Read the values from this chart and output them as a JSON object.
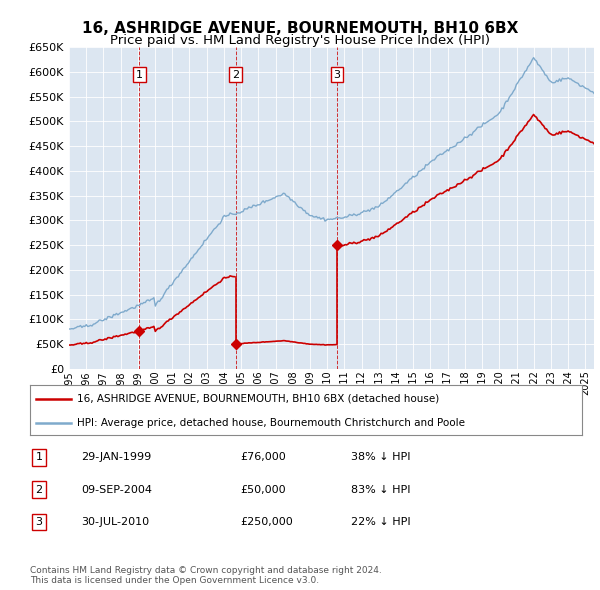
{
  "title": "16, ASHRIDGE AVENUE, BOURNEMOUTH, BH10 6BX",
  "subtitle": "Price paid vs. HM Land Registry's House Price Index (HPI)",
  "title_fontsize": 11,
  "subtitle_fontsize": 9.5,
  "background_color": "#ffffff",
  "plot_bg_color": "#dce6f1",
  "grid_color": "#ffffff",
  "ylim": [
    0,
    650000
  ],
  "yticks": [
    0,
    50000,
    100000,
    150000,
    200000,
    250000,
    300000,
    350000,
    400000,
    450000,
    500000,
    550000,
    600000,
    650000
  ],
  "sales": [
    {
      "date_num": 1999.08,
      "price": 76000,
      "label": "1"
    },
    {
      "date_num": 2004.68,
      "price": 50000,
      "label": "2"
    },
    {
      "date_num": 2010.58,
      "price": 250000,
      "label": "3"
    }
  ],
  "sale_color": "#cc0000",
  "vline_color": "#cc0000",
  "vline_style": "--",
  "hpi_color": "#7faacc",
  "hpi_linewidth": 1.0,
  "sale_linewidth": 1.2,
  "legend_entries": [
    "16, ASHRIDGE AVENUE, BOURNEMOUTH, BH10 6BX (detached house)",
    "HPI: Average price, detached house, Bournemouth Christchurch and Poole"
  ],
  "table_rows": [
    {
      "num": "1",
      "date": "29-JAN-1999",
      "price": "£76,000",
      "hpi": "38% ↓ HPI"
    },
    {
      "num": "2",
      "date": "09-SEP-2004",
      "price": "£50,000",
      "hpi": "83% ↓ HPI"
    },
    {
      "num": "3",
      "date": "30-JUL-2010",
      "price": "£250,000",
      "hpi": "22% ↓ HPI"
    }
  ],
  "footer": "Contains HM Land Registry data © Crown copyright and database right 2024.\nThis data is licensed under the Open Government Licence v3.0.",
  "xmin": 1995,
  "xmax": 2025.5,
  "xtick_years": [
    1995,
    1996,
    1997,
    1998,
    1999,
    2000,
    2001,
    2002,
    2003,
    2004,
    2005,
    2006,
    2007,
    2008,
    2009,
    2010,
    2011,
    2012,
    2013,
    2014,
    2015,
    2016,
    2017,
    2018,
    2019,
    2020,
    2021,
    2022,
    2023,
    2024,
    2025
  ]
}
